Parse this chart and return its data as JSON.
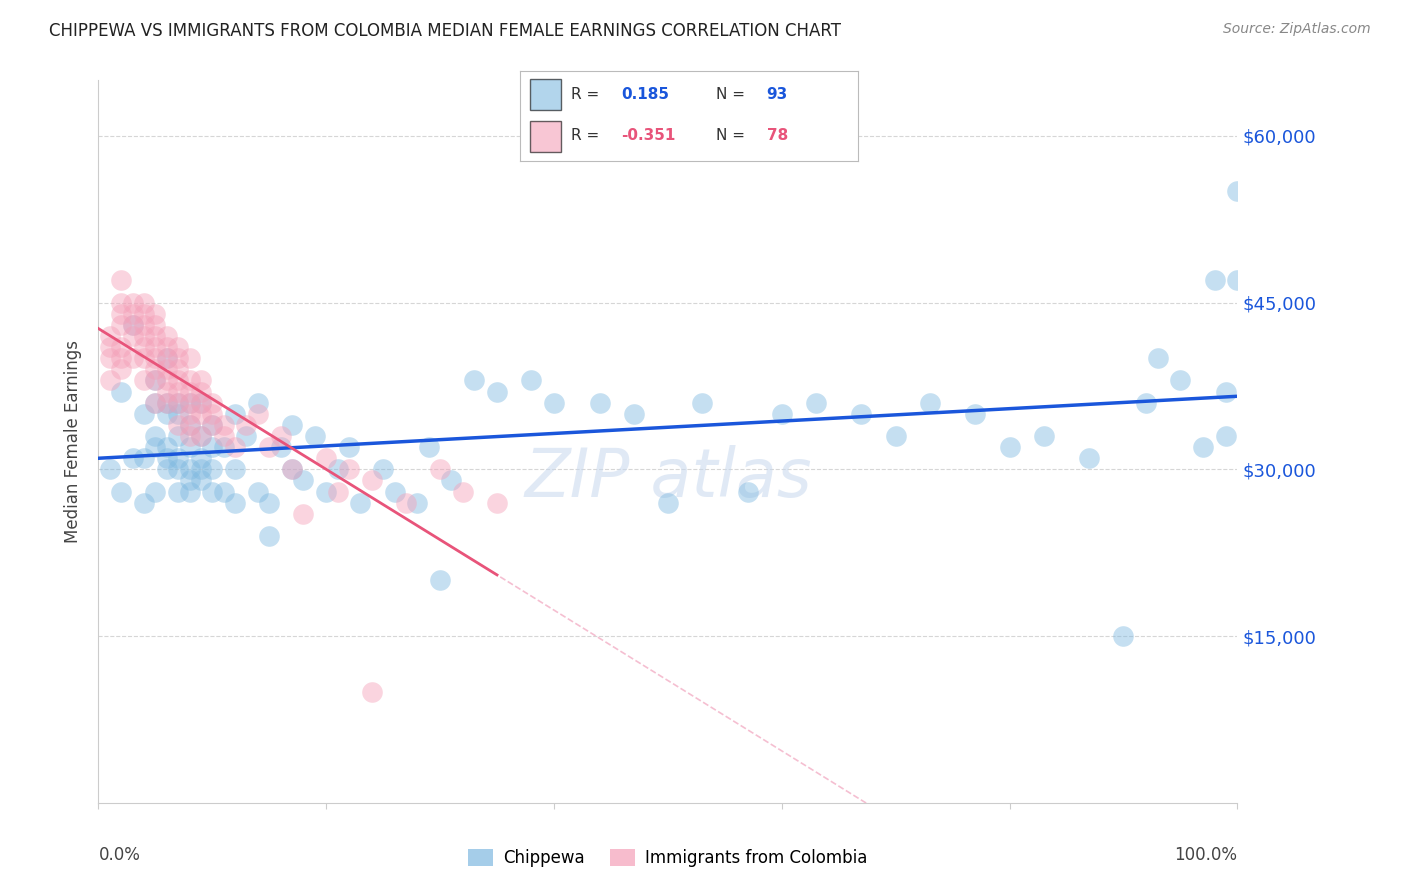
{
  "title": "CHIPPEWA VS IMMIGRANTS FROM COLOMBIA MEDIAN FEMALE EARNINGS CORRELATION CHART",
  "source": "Source: ZipAtlas.com",
  "ylabel": "Median Female Earnings",
  "ytick_labels": [
    "$15,000",
    "$30,000",
    "$45,000",
    "$60,000"
  ],
  "ytick_values": [
    15000,
    30000,
    45000,
    60000
  ],
  "ymin": 0,
  "ymax": 65000,
  "xmin": 0.0,
  "xmax": 1.0,
  "color_blue": "#7fb9e0",
  "color_pink": "#f4a0b8",
  "line_blue": "#1a56db",
  "line_pink": "#e8547a",
  "line_dashed_color": "#f4b8cc",
  "background_color": "#ffffff",
  "grid_color": "#cccccc",
  "chippewa_x": [
    0.01,
    0.02,
    0.02,
    0.03,
    0.03,
    0.04,
    0.04,
    0.04,
    0.05,
    0.05,
    0.05,
    0.05,
    0.05,
    0.06,
    0.06,
    0.06,
    0.06,
    0.06,
    0.06,
    0.07,
    0.07,
    0.07,
    0.07,
    0.07,
    0.07,
    0.08,
    0.08,
    0.08,
    0.08,
    0.08,
    0.08,
    0.09,
    0.09,
    0.09,
    0.09,
    0.09,
    0.1,
    0.1,
    0.1,
    0.1,
    0.11,
    0.11,
    0.12,
    0.12,
    0.12,
    0.13,
    0.14,
    0.14,
    0.15,
    0.15,
    0.16,
    0.17,
    0.17,
    0.18,
    0.19,
    0.2,
    0.21,
    0.22,
    0.23,
    0.25,
    0.26,
    0.28,
    0.29,
    0.3,
    0.31,
    0.33,
    0.35,
    0.38,
    0.4,
    0.44,
    0.47,
    0.5,
    0.53,
    0.57,
    0.6,
    0.63,
    0.67,
    0.7,
    0.73,
    0.77,
    0.8,
    0.83,
    0.87,
    0.9,
    0.92,
    0.93,
    0.95,
    0.97,
    0.98,
    0.99,
    0.99,
    1.0,
    1.0
  ],
  "chippewa_y": [
    30000,
    37000,
    28000,
    31000,
    43000,
    27000,
    35000,
    31000,
    38000,
    36000,
    33000,
    28000,
    32000,
    40000,
    36000,
    31000,
    32000,
    30000,
    35000,
    35000,
    31000,
    28000,
    33000,
    30000,
    36000,
    34000,
    30000,
    28000,
    36000,
    32000,
    29000,
    33000,
    31000,
    29000,
    36000,
    30000,
    34000,
    30000,
    32000,
    28000,
    32000,
    28000,
    35000,
    27000,
    30000,
    33000,
    36000,
    28000,
    27000,
    24000,
    32000,
    34000,
    30000,
    29000,
    33000,
    28000,
    30000,
    32000,
    27000,
    30000,
    28000,
    27000,
    32000,
    20000,
    29000,
    38000,
    37000,
    38000,
    36000,
    36000,
    35000,
    27000,
    36000,
    28000,
    35000,
    36000,
    35000,
    33000,
    36000,
    35000,
    32000,
    33000,
    31000,
    15000,
    36000,
    40000,
    38000,
    32000,
    47000,
    37000,
    33000,
    55000,
    47000
  ],
  "colombia_x": [
    0.01,
    0.01,
    0.01,
    0.01,
    0.02,
    0.02,
    0.02,
    0.02,
    0.02,
    0.02,
    0.02,
    0.03,
    0.03,
    0.03,
    0.03,
    0.03,
    0.04,
    0.04,
    0.04,
    0.04,
    0.04,
    0.04,
    0.04,
    0.05,
    0.05,
    0.05,
    0.05,
    0.05,
    0.05,
    0.05,
    0.05,
    0.06,
    0.06,
    0.06,
    0.06,
    0.06,
    0.06,
    0.06,
    0.07,
    0.07,
    0.07,
    0.07,
    0.07,
    0.07,
    0.07,
    0.08,
    0.08,
    0.08,
    0.08,
    0.08,
    0.08,
    0.08,
    0.09,
    0.09,
    0.09,
    0.09,
    0.09,
    0.1,
    0.1,
    0.1,
    0.11,
    0.11,
    0.12,
    0.13,
    0.14,
    0.15,
    0.16,
    0.17,
    0.18,
    0.2,
    0.21,
    0.22,
    0.24,
    0.27,
    0.3,
    0.32,
    0.35,
    0.24
  ],
  "colombia_y": [
    38000,
    40000,
    41000,
    42000,
    39000,
    41000,
    43000,
    44000,
    45000,
    40000,
    47000,
    40000,
    42000,
    44000,
    45000,
    43000,
    41000,
    40000,
    42000,
    43000,
    44000,
    38000,
    45000,
    40000,
    41000,
    42000,
    39000,
    43000,
    38000,
    36000,
    44000,
    40000,
    38000,
    41000,
    36000,
    39000,
    42000,
    37000,
    40000,
    38000,
    41000,
    36000,
    37000,
    34000,
    39000,
    36000,
    38000,
    37000,
    33000,
    35000,
    40000,
    34000,
    35000,
    37000,
    36000,
    33000,
    38000,
    34000,
    35000,
    36000,
    33000,
    34000,
    32000,
    34000,
    35000,
    32000,
    33000,
    30000,
    26000,
    31000,
    28000,
    30000,
    29000,
    27000,
    30000,
    28000,
    27000,
    10000
  ]
}
